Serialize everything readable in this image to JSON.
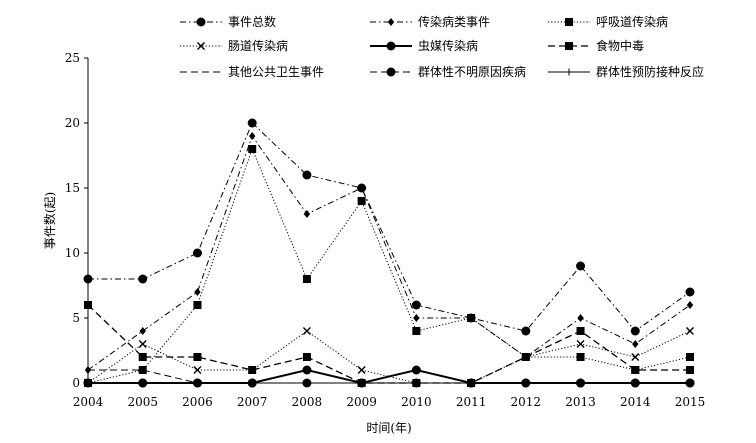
{
  "chart_data": {
    "type": "line",
    "xlabel": "时间(年)",
    "ylabel": "事件数(起)",
    "ylim": [
      0,
      25
    ],
    "yticks": [
      0,
      5,
      10,
      15,
      20,
      25
    ],
    "x": [
      "2004",
      "2005",
      "2006",
      "2007",
      "2008",
      "2009",
      "2010",
      "2011",
      "2012",
      "2013",
      "2014",
      "2015"
    ],
    "grid": false,
    "legend_position": "top",
    "series": [
      {
        "name": "事件总数",
        "values": [
          8,
          8,
          10,
          20,
          16,
          15,
          6,
          5,
          4,
          9,
          4,
          7
        ],
        "dash": "dashdot",
        "marker": "circle",
        "width": 1
      },
      {
        "name": "传染病类事件",
        "values": [
          1,
          4,
          7,
          19,
          13,
          15,
          5,
          5,
          2,
          5,
          3,
          6
        ],
        "dash": "dashdot",
        "marker": "diamond",
        "width": 1
      },
      {
        "name": "呼吸道传染病",
        "values": [
          0,
          1,
          6,
          18,
          8,
          14,
          4,
          5,
          2,
          2,
          1,
          2
        ],
        "dash": "dotted",
        "marker": "square",
        "width": 1
      },
      {
        "name": "肠道传染病",
        "values": [
          0,
          3,
          1,
          1,
          4,
          1,
          0,
          0,
          2,
          3,
          2,
          4
        ],
        "dash": "dotted",
        "marker": "x",
        "width": 1
      },
      {
        "name": "虫媒传染病",
        "values": [
          0,
          0,
          0,
          0,
          1,
          0,
          1,
          0,
          0,
          0,
          0,
          0
        ],
        "dash": "solid",
        "marker": "circle",
        "width": 2
      },
      {
        "name": "食物中毒",
        "values": [
          6,
          2,
          2,
          1,
          2,
          0,
          0,
          0,
          2,
          4,
          1,
          1
        ],
        "dash": "longdash",
        "marker": "square",
        "width": 1.3
      },
      {
        "name": "其他公共卫生事件",
        "values": [
          1,
          1,
          0,
          0,
          0,
          0,
          1,
          0,
          0,
          0,
          0,
          0
        ],
        "dash": "longdash",
        "marker": "none",
        "width": 1
      },
      {
        "name": "群体性不明原因疾病",
        "values": [
          0,
          0,
          0,
          0,
          0,
          0,
          0,
          0,
          0,
          0,
          0,
          0
        ],
        "dash": "longdash",
        "marker": "circle",
        "width": 1
      },
      {
        "name": "群体性预防接种反应",
        "values": [
          0,
          0,
          0,
          0,
          0,
          0,
          0,
          0,
          0,
          0,
          0,
          0
        ],
        "dash": "solid",
        "marker": "plus",
        "width": 1
      }
    ]
  }
}
